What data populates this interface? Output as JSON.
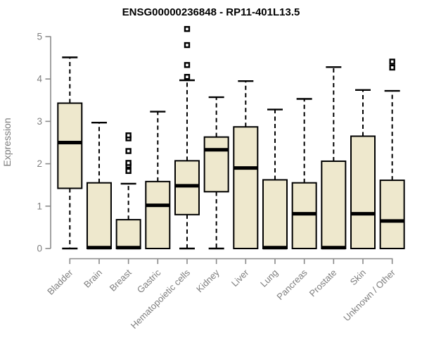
{
  "title": "ENSG00000236848 - RP11-401L13.5",
  "colors": {
    "box_fill": "#EEE8CD",
    "box_stroke": "#000000",
    "median": "#000000",
    "whisker": "#000000",
    "axis": "#8A8A8A",
    "tick_label": "#7E7E7E",
    "title_text": "#000000",
    "background": "#FFFFFF"
  },
  "chart_data": {
    "type": "boxplot",
    "title": "ENSG00000236848 - RP11-401L13.5",
    "xlabel": "",
    "ylabel": "Expression",
    "ylim": [
      0,
      5
    ],
    "yticks": [
      0,
      1,
      2,
      3,
      4,
      5
    ],
    "grid": false,
    "legend": "none",
    "categories": [
      "Bladder",
      "Brain",
      "Breast",
      "Gastric",
      "Hematopoietic cells",
      "Kidney",
      "Liver",
      "Lung",
      "Pancreas",
      "Prostate",
      "Skin",
      "Unknown / Other"
    ],
    "series": [
      {
        "name": "Bladder",
        "whisker_low": 0,
        "q1": 1.42,
        "median": 2.5,
        "q3": 3.43,
        "whisker_high": 4.51,
        "outliers": []
      },
      {
        "name": "Brain",
        "whisker_low": 0,
        "q1": 0,
        "median": 0.02,
        "q3": 1.55,
        "whisker_high": 2.97,
        "outliers": []
      },
      {
        "name": "Breast",
        "whisker_low": 0,
        "q1": 0,
        "median": 0.02,
        "q3": 0.68,
        "whisker_high": 1.53,
        "outliers": [
          1.83,
          1.96,
          2.02,
          2.3,
          2.6,
          2.67
        ]
      },
      {
        "name": "Gastric",
        "whisker_low": 0,
        "q1": 0,
        "median": 1.02,
        "q3": 1.58,
        "whisker_high": 3.23,
        "outliers": []
      },
      {
        "name": "Hematopoietic cells",
        "whisker_low": 0,
        "q1": 0.8,
        "median": 1.48,
        "q3": 2.07,
        "whisker_high": 3.97,
        "outliers": [
          4.05,
          4.33,
          4.8,
          5.18
        ]
      },
      {
        "name": "Kidney",
        "whisker_low": 0,
        "q1": 1.34,
        "median": 2.33,
        "q3": 2.63,
        "whisker_high": 3.57,
        "outliers": []
      },
      {
        "name": "Liver",
        "whisker_low": 0,
        "q1": 0,
        "median": 1.9,
        "q3": 2.87,
        "whisker_high": 3.95,
        "outliers": []
      },
      {
        "name": "Lung",
        "whisker_low": 0,
        "q1": 0,
        "median": 0.02,
        "q3": 1.62,
        "whisker_high": 3.28,
        "outliers": []
      },
      {
        "name": "Pancreas",
        "whisker_low": 0,
        "q1": 0,
        "median": 0.82,
        "q3": 1.55,
        "whisker_high": 3.53,
        "outliers": []
      },
      {
        "name": "Prostate",
        "whisker_low": 0,
        "q1": 0,
        "median": 0.02,
        "q3": 2.06,
        "whisker_high": 4.28,
        "outliers": []
      },
      {
        "name": "Skin",
        "whisker_low": 0,
        "q1": 0,
        "median": 0.82,
        "q3": 2.65,
        "whisker_high": 3.74,
        "outliers": []
      },
      {
        "name": "Unknown / Other",
        "whisker_low": 0,
        "q1": 0,
        "median": 0.65,
        "q3": 1.61,
        "whisker_high": 3.72,
        "outliers": [
          4.27,
          4.41
        ]
      }
    ]
  }
}
